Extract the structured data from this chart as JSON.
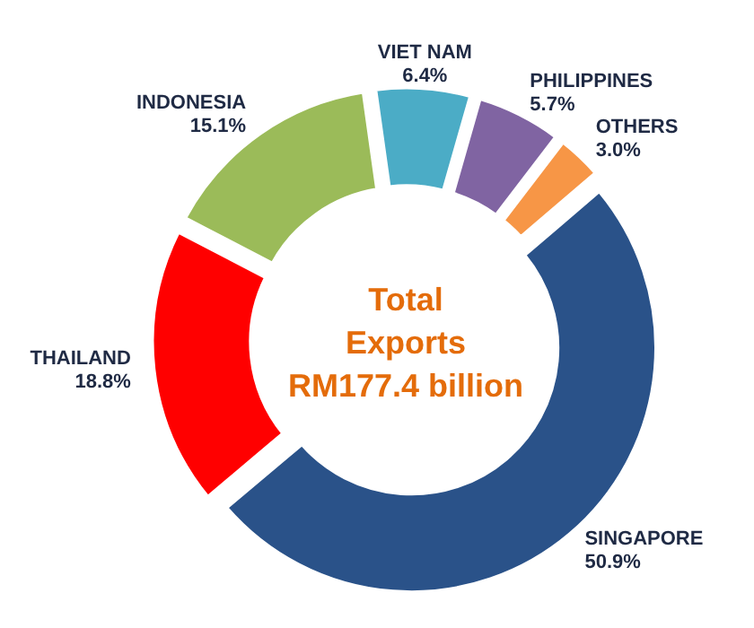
{
  "chart_data": {
    "type": "donut",
    "categories": [
      "VIET NAM",
      "PHILIPPINES",
      "OTHERS",
      "SINGAPORE",
      "THAILAND",
      "INDONESIA"
    ],
    "values": [
      6.4,
      5.7,
      3.0,
      50.9,
      18.8,
      15.1
    ],
    "value_labels": [
      "6.4%",
      "5.7%",
      "3.0%",
      "50.9%",
      "18.8%",
      "15.1%"
    ],
    "colors": [
      "#4bacc6",
      "#8064a2",
      "#f79646",
      "#2a5289",
      "#ff0000",
      "#9bbb59"
    ],
    "annotations": [
      "Total",
      "Exports",
      "RM177.4 billion"
    ]
  }
}
